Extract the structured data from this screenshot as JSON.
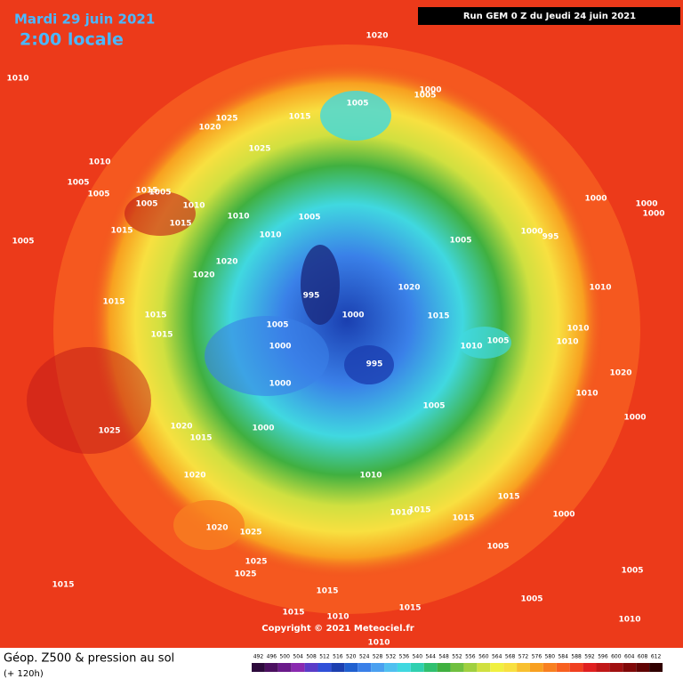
{
  "header": {
    "date": "Mardi 29 juin 2021",
    "time": "2:00 locale",
    "run": "Run GEM 0 Z du Jeudi 24 juin 2021"
  },
  "footer": {
    "title": "Géop. Z500 & pression au sol",
    "lead": "(+ 120h)",
    "copyright": "Copyright © 2021 Meteociel.fr"
  },
  "legend": {
    "labels": [
      492,
      496,
      500,
      504,
      508,
      512,
      516,
      520,
      524,
      528,
      532,
      536,
      540,
      544,
      548,
      552,
      556,
      560,
      564,
      568,
      572,
      576,
      580,
      584,
      588,
      592,
      596,
      600,
      604,
      608,
      612
    ],
    "colors": [
      "#2d0a3c",
      "#4b1060",
      "#6a1a8a",
      "#8a2ab0",
      "#5a3cc8",
      "#3050d8",
      "#1c3fb0",
      "#2060d0",
      "#3a80e8",
      "#4aa0f0",
      "#50c0f0",
      "#40d8e0",
      "#30d0b0",
      "#30c070",
      "#40b040",
      "#70c040",
      "#a0d040",
      "#d0e040",
      "#f0f040",
      "#f8e040",
      "#f8c030",
      "#f8a020",
      "#f88020",
      "#f86020",
      "#f04020",
      "#e02020",
      "#c01818",
      "#a01010",
      "#800808",
      "#600404",
      "#300000"
    ]
  },
  "isobar_labels": [
    1020,
    1010,
    1025,
    1020,
    1015,
    1005,
    1000,
    1005,
    1025,
    1010,
    1005,
    1005,
    1015,
    1005,
    1005,
    1010,
    1015,
    1015,
    1010,
    1005,
    1005,
    1010,
    1020,
    1020,
    1015,
    1015,
    1015,
    995,
    1005,
    1000,
    1000,
    1020,
    1015,
    1010,
    1005,
    995,
    1000,
    1005,
    1000,
    995,
    1000,
    1000,
    1000,
    1010,
    1010,
    1010,
    1020,
    1010,
    1000,
    1005,
    1025,
    1020,
    1015,
    1000,
    1020,
    1010,
    1015,
    1010,
    1015,
    1015,
    1000,
    1020,
    1025,
    1025,
    1025,
    1015,
    1015,
    1005,
    1005,
    1005,
    1010,
    1015,
    1010,
    1015,
    1010
  ]
}
